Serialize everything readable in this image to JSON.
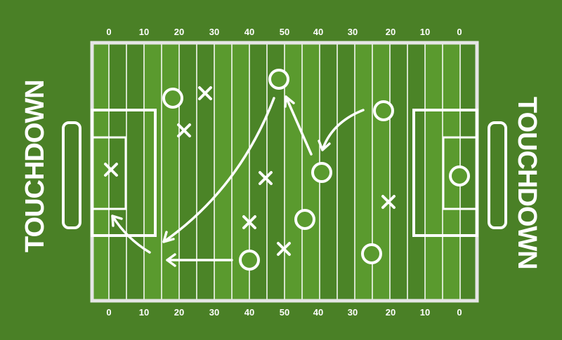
{
  "colors": {
    "background": "#4a8026",
    "stripe_light": "#5a9a2e",
    "stripe_dark": "#4b8427",
    "lines": "#ffffff",
    "border": "#e6e6e6"
  },
  "end_zone_labels": {
    "left": "TOUCHDOWN",
    "right": "TOUCHDOWN"
  },
  "yard_numbers_top": [
    "0",
    "10",
    "20",
    "30",
    "40",
    "50",
    "40",
    "30",
    "20",
    "10",
    "0"
  ],
  "yard_numbers_bottom": [
    "0",
    "10",
    "20",
    "30",
    "40",
    "50",
    "40",
    "30",
    "20",
    "10",
    "0"
  ],
  "players": {
    "offense_symbol": "circle",
    "defense_symbol": "x",
    "offense_count": 8,
    "defense_count": 7
  }
}
